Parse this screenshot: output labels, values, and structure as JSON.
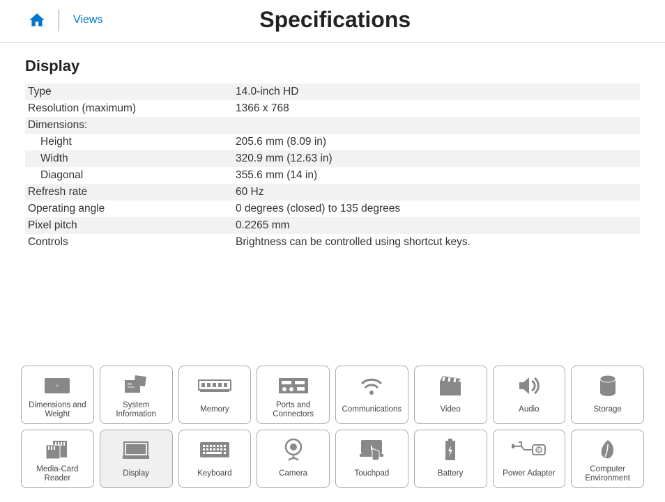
{
  "header": {
    "views": "Views",
    "title": "Specifications"
  },
  "section": {
    "heading": "Display",
    "rows": [
      {
        "label": "Type",
        "value": "14.0-inch HD",
        "indent": false,
        "striped": true
      },
      {
        "label": "Resolution (maximum)",
        "value": "1366 x 768",
        "indent": false,
        "striped": false
      },
      {
        "label": "Dimensions:",
        "value": "",
        "indent": false,
        "striped": true
      },
      {
        "label": "Height",
        "value": "205.6 mm (8.09 in)",
        "indent": true,
        "striped": false
      },
      {
        "label": "Width",
        "value": "320.9 mm (12.63 in)",
        "indent": true,
        "striped": true
      },
      {
        "label": "Diagonal",
        "value": "355.6 mm (14 in)",
        "indent": true,
        "striped": false
      },
      {
        "label": "Refresh rate",
        "value": "60 Hz",
        "indent": false,
        "striped": true
      },
      {
        "label": "Operating angle",
        "value": "0 degrees (closed) to 135 degrees",
        "indent": false,
        "striped": false
      },
      {
        "label": "Pixel pitch",
        "value": "0.2265 mm",
        "indent": false,
        "striped": true
      },
      {
        "label": "Controls",
        "value": "Brightness can be controlled using shortcut keys.",
        "indent": false,
        "striped": false
      }
    ]
  },
  "cards": {
    "row1": [
      {
        "id": "dimensions",
        "label": "Dimensions and Weight"
      },
      {
        "id": "system-info",
        "label": "System Information"
      },
      {
        "id": "memory",
        "label": "Memory"
      },
      {
        "id": "ports",
        "label": "Ports and Connectors"
      },
      {
        "id": "comms",
        "label": "Communications"
      },
      {
        "id": "video",
        "label": "Video"
      },
      {
        "id": "audio",
        "label": "Audio"
      },
      {
        "id": "storage",
        "label": "Storage"
      }
    ],
    "row2": [
      {
        "id": "mediacard",
        "label": "Media-Card Reader"
      },
      {
        "id": "display",
        "label": "Display",
        "active": true
      },
      {
        "id": "keyboard",
        "label": "Keyboard"
      },
      {
        "id": "camera",
        "label": "Camera"
      },
      {
        "id": "touchpad",
        "label": "Touchpad"
      },
      {
        "id": "battery",
        "label": "Battery"
      },
      {
        "id": "power",
        "label": "Power Adapter"
      },
      {
        "id": "env",
        "label": "Computer Environment"
      }
    ]
  },
  "colors": {
    "accent": "#0076ce",
    "icon_gray": "#888888",
    "stripe": "#f2f2f2",
    "border": "#aaaaaa"
  }
}
